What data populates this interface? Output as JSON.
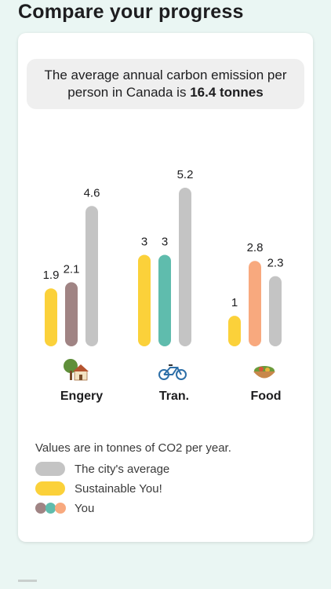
{
  "page": {
    "title": "Compare your progress"
  },
  "info": {
    "text_before": "The average annual carbon emission per person in Canada is ",
    "text_bold": "16.4 tonnes"
  },
  "chart_data": {
    "type": "bar",
    "categories": [
      "Engery",
      "Tran.",
      "Food"
    ],
    "category_icons": [
      "house-tree-icon",
      "bicycle-icon",
      "food-bowl-icon"
    ],
    "series": [
      {
        "name": "Sustainable You!",
        "values": [
          null,
          3,
          1
        ],
        "color": "#fbd13a"
      },
      {
        "name": "You",
        "values": [
          1.9,
          3,
          2.8
        ],
        "colors": [
          "#fbd13a",
          "#5fbcad",
          "#f8a97e"
        ]
      },
      {
        "name": "The city's average",
        "values": [
          2.1,
          null,
          null
        ],
        "color": "#a08484"
      },
      {
        "name": "The city's average",
        "values": [
          4.6,
          5.2,
          2.3
        ],
        "color": "#c4c4c4"
      }
    ],
    "bars": [
      {
        "category": 0,
        "value": 1.9,
        "label": "1.9",
        "color": "#fbd13a"
      },
      {
        "category": 0,
        "value": 2.1,
        "label": "2.1",
        "color": "#a08484"
      },
      {
        "category": 0,
        "value": 4.6,
        "label": "4.6",
        "color": "#c4c4c4"
      },
      {
        "category": 1,
        "value": 3,
        "label": "3",
        "color": "#fbd13a"
      },
      {
        "category": 1,
        "value": 3,
        "label": "3",
        "color": "#5fbcad"
      },
      {
        "category": 1,
        "value": 5.2,
        "label": "5.2",
        "color": "#c4c4c4"
      },
      {
        "category": 2,
        "value": 1,
        "label": "1",
        "color": "#fbd13a"
      },
      {
        "category": 2,
        "value": 2.8,
        "label": "2.8",
        "color": "#f8a97e"
      },
      {
        "category": 2,
        "value": 2.3,
        "label": "2.3",
        "color": "#c4c4c4"
      }
    ],
    "ylim": [
      0,
      5.2
    ],
    "grid": false,
    "legend_position": "bottom-left"
  },
  "legend": {
    "note": "Values are in tonnes of CO2 per year.",
    "items": [
      {
        "label": "The city's average",
        "color": "#c4c4c4"
      },
      {
        "label": "Sustainable You!",
        "color": "#fbd13a"
      },
      {
        "label": "You",
        "colors": [
          "#a08484",
          "#5fbcad",
          "#f8a97e"
        ]
      }
    ]
  }
}
